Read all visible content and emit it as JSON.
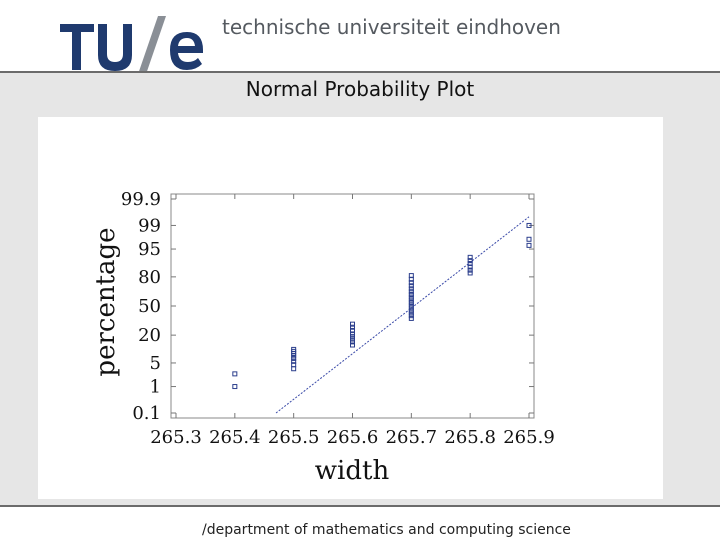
{
  "header": {
    "logo_text": "TU/e",
    "university_name": "technische universiteit eindhoven"
  },
  "slide": {
    "title": "Normal Probability Plot"
  },
  "footer": {
    "text": "/department of mathematics and computing science"
  },
  "colors": {
    "logo_blue": "#1f3a6e",
    "marker": "#2b3e8c",
    "fit_line": "#3a4aa8",
    "band_gray": "#e6e6e6"
  },
  "chart_data": {
    "type": "scatter",
    "title": "",
    "xlabel": "width",
    "ylabel": "percentage",
    "xlim": [
      265.3,
      265.9
    ],
    "x_ticks": [
      265.3,
      265.4,
      265.5,
      265.6,
      265.7,
      265.8,
      265.9
    ],
    "x_tick_labels": [
      "265.3",
      "265.4",
      "265.5",
      "265.6",
      "265.7",
      "265.8",
      "265.9"
    ],
    "y_scale": "normal-probability",
    "ylim": [
      0.1,
      99.9
    ],
    "y_ticks": [
      0.1,
      1,
      5,
      20,
      50,
      80,
      95,
      99,
      99.9
    ],
    "y_tick_labels": [
      "0.1",
      "1",
      "5",
      "20",
      "50",
      "80",
      "95",
      "99",
      "99.9"
    ],
    "grid": false,
    "series": [
      {
        "marker": "open-square",
        "points": [
          {
            "x": 265.4,
            "y": 1.0
          },
          {
            "x": 265.4,
            "y": 2.5
          },
          {
            "x": 265.5,
            "y": 3.5
          },
          {
            "x": 265.5,
            "y": 4.5
          },
          {
            "x": 265.5,
            "y": 5.5
          },
          {
            "x": 265.5,
            "y": 6.5
          },
          {
            "x": 265.5,
            "y": 7.5
          },
          {
            "x": 265.5,
            "y": 8.5
          },
          {
            "x": 265.5,
            "y": 9.5
          },
          {
            "x": 265.5,
            "y": 10.5
          },
          {
            "x": 265.6,
            "y": 13
          },
          {
            "x": 265.6,
            "y": 15
          },
          {
            "x": 265.6,
            "y": 17
          },
          {
            "x": 265.6,
            "y": 19
          },
          {
            "x": 265.6,
            "y": 21
          },
          {
            "x": 265.6,
            "y": 24
          },
          {
            "x": 265.6,
            "y": 27
          },
          {
            "x": 265.6,
            "y": 30
          },
          {
            "x": 265.7,
            "y": 36
          },
          {
            "x": 265.7,
            "y": 39
          },
          {
            "x": 265.7,
            "y": 42
          },
          {
            "x": 265.7,
            "y": 45
          },
          {
            "x": 265.7,
            "y": 48
          },
          {
            "x": 265.7,
            "y": 51
          },
          {
            "x": 265.7,
            "y": 54
          },
          {
            "x": 265.7,
            "y": 57
          },
          {
            "x": 265.7,
            "y": 60
          },
          {
            "x": 265.7,
            "y": 63
          },
          {
            "x": 265.7,
            "y": 66
          },
          {
            "x": 265.7,
            "y": 69
          },
          {
            "x": 265.7,
            "y": 72
          },
          {
            "x": 265.7,
            "y": 75
          },
          {
            "x": 265.7,
            "y": 78
          },
          {
            "x": 265.7,
            "y": 81
          },
          {
            "x": 265.8,
            "y": 83
          },
          {
            "x": 265.8,
            "y": 85
          },
          {
            "x": 265.8,
            "y": 87
          },
          {
            "x": 265.8,
            "y": 89
          },
          {
            "x": 265.8,
            "y": 90.5
          },
          {
            "x": 265.8,
            "y": 92
          },
          {
            "x": 265.9,
            "y": 96
          },
          {
            "x": 265.9,
            "y": 97.3
          },
          {
            "x": 265.9,
            "y": 99
          }
        ]
      }
    ],
    "fit_line": {
      "x": [
        265.47,
        265.9
      ],
      "y": [
        0.1,
        99.5
      ]
    }
  }
}
